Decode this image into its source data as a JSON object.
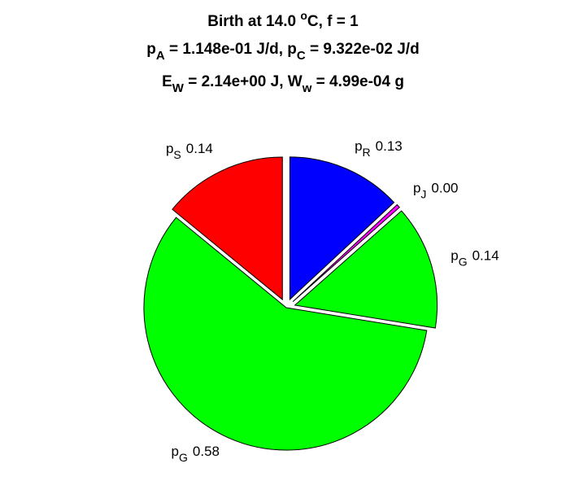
{
  "chart_data": {
    "type": "pie",
    "title": [
      [
        "Birth at 14.0 ",
        "o",
        "C, f = 1"
      ],
      [
        "p",
        "A",
        " = 1.148e-01 J/d, p",
        "C",
        " = 9.322e-02 J/d"
      ],
      [
        "E",
        "W",
        " = 2.14e+00 J, W",
        "w",
        " = 4.99e-04 g"
      ]
    ],
    "categories": [
      [
        "p",
        "R"
      ],
      [
        "p",
        "J"
      ],
      [
        "p",
        "G"
      ],
      [
        "p",
        "G"
      ],
      [
        "p",
        "S"
      ]
    ],
    "values": [
      0.13,
      0.004,
      0.14,
      0.58,
      0.14
    ],
    "value_labels": [
      "0.13",
      "0.00",
      "0.14",
      "0.58",
      "0.14"
    ],
    "colors": [
      "#0000ff",
      "#ff00ff",
      "#00ff00",
      "#00ff00",
      "#ff0000"
    ],
    "explode": [
      true,
      true,
      true,
      false,
      true
    ]
  }
}
